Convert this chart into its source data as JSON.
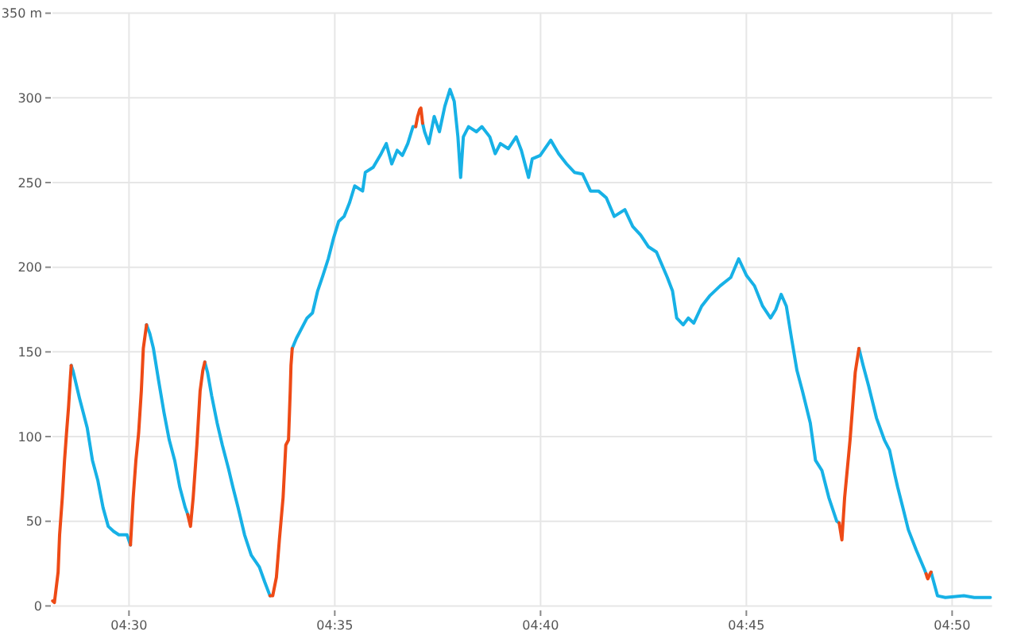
{
  "chart_data": {
    "type": "line",
    "xlim": [
      4.469,
      4.8495
    ],
    "xticks": [
      {
        "value": 4.5,
        "label": "04:30"
      },
      {
        "value": 4.583333,
        "label": "04:35"
      },
      {
        "value": 4.666667,
        "label": "04:40"
      },
      {
        "value": 4.75,
        "label": "04:45"
      },
      {
        "value": 4.833333,
        "label": "04:50"
      }
    ],
    "ylim": [
      0,
      350
    ],
    "yticks": [
      0,
      50,
      100,
      150,
      200,
      250,
      300,
      {
        "value": 350,
        "label": "350 m"
      }
    ],
    "grid": true,
    "series": [
      {
        "color": "#17b1e6",
        "x": [
          4.4766,
          4.4773,
          4.4799,
          4.4831,
          4.4852,
          4.4874,
          4.4895,
          4.4916,
          4.4938,
          4.4959,
          4.4992,
          4.5006,
          4.5039,
          4.5071,
          4.5084,
          4.5099,
          4.512,
          4.5142,
          4.5163,
          4.5185,
          4.5206,
          4.5228,
          4.5238,
          4.5275,
          4.5307,
          4.5318,
          4.5335,
          4.5357,
          4.5378,
          4.5403,
          4.5421,
          4.5442,
          4.5468,
          4.5495,
          4.5528,
          4.555,
          4.5571,
          4.5624,
          4.5661,
          4.5678,
          4.5721,
          4.5743,
          4.5764,
          4.5785,
          4.5807,
          4.5828,
          4.5849,
          4.5871,
          4.5893,
          4.5914,
          4.5946,
          4.5957,
          4.5989,
          4.6021,
          4.6042,
          4.6064,
          4.6086,
          4.6107,
          4.6129,
          4.615,
          4.6161,
          4.6169,
          4.6189,
          4.6197,
          4.6214,
          4.6236,
          4.6257,
          4.6279,
          4.63,
          4.6317,
          4.6332,
          4.6343,
          4.6354,
          4.6375,
          4.6407,
          4.6429,
          4.6461,
          4.6483,
          4.6504,
          4.6536,
          4.6568,
          4.6589,
          4.6618,
          4.6633,
          4.6665,
          4.6708,
          4.674,
          4.6772,
          4.6804,
          4.6837,
          4.6869,
          4.6901,
          4.6933,
          4.6965,
          4.7008,
          4.704,
          4.7072,
          4.7104,
          4.7136,
          4.718,
          4.7201,
          4.7218,
          4.7244,
          4.7265,
          4.7287,
          4.7319,
          4.7351,
          4.7394,
          4.7437,
          4.7469,
          4.7501,
          4.7533,
          4.7566,
          4.7598,
          4.7619,
          4.7641,
          4.7662,
          4.7683,
          4.7705,
          4.7727,
          4.7759,
          4.778,
          4.7806,
          4.7834,
          4.7866,
          4.7876,
          4.792,
          4.7956,
          4.7973,
          4.7995,
          4.8027,
          4.8059,
          4.808,
          4.8102,
          4.8113,
          4.8134,
          4.8156,
          4.8188,
          4.822,
          4.8228,
          4.8235,
          4.8248,
          4.8274,
          4.8306,
          4.8381,
          4.8423,
          4.8488
        ],
        "values": [
          142,
          139,
          123,
          105,
          86,
          74,
          58,
          47,
          44,
          42,
          42,
          36,
          null,
          166,
          161,
          152,
          133,
          114,
          98,
          86,
          70,
          58,
          54,
          null,
          144,
          138,
          124,
          108,
          95,
          81,
          70,
          58,
          42,
          30,
          23,
          14,
          6,
          null,
          152,
          158,
          170,
          173,
          186,
          195,
          205,
          217,
          227,
          230,
          238,
          248,
          245,
          256,
          259,
          267,
          273,
          261,
          269,
          266,
          273,
          283,
          283,
          null,
          285,
          280,
          273,
          289,
          280,
          295,
          305,
          298,
          277,
          253,
          277,
          283,
          280,
          283,
          277,
          267,
          273,
          270,
          277,
          269,
          253,
          264,
          266,
          275,
          267,
          261,
          256,
          255,
          245,
          245,
          241,
          230,
          234,
          224,
          219,
          212,
          209,
          194,
          186,
          170,
          166,
          170,
          167,
          177,
          183,
          189,
          194,
          205,
          195,
          189,
          177,
          170,
          175,
          184,
          177,
          158,
          139,
          127,
          108,
          86,
          80,
          64,
          50,
          49,
          null,
          152,
          142,
          130,
          111,
          98,
          92,
          77,
          70,
          58,
          45,
          33,
          22,
          19,
          null,
          20,
          6,
          5,
          6,
          5,
          5
        ]
      },
      {
        "color": "#ee4a16",
        "x": [
          4.4691,
          4.4698,
          4.4713,
          4.4719,
          4.473,
          4.4739,
          4.4747,
          4.4755,
          4.4762,
          4.4766,
          4.4852,
          4.5006,
          4.5017,
          4.5028,
          4.5039,
          4.505,
          4.5058,
          4.5071,
          4.5163,
          4.5238,
          4.5249,
          4.526,
          4.5275,
          4.5288,
          4.5299,
          4.5307,
          4.5442,
          4.5571,
          4.5582,
          4.5597,
          4.5609,
          4.5624,
          4.5635,
          4.5646,
          4.5653,
          4.5656,
          4.5661,
          4.59,
          4.6161,
          4.6165,
          4.6169,
          4.6173,
          4.6177,
          4.6182,
          4.6186,
          4.6189,
          4.7,
          4.7876,
          4.7887,
          4.7898,
          4.792,
          4.7941,
          4.7956,
          4.81,
          4.8228,
          4.823,
          4.8232,
          4.8235,
          4.8238,
          4.8241,
          4.8244,
          4.8248
        ],
        "values": [
          3,
          2,
          20,
          42,
          64,
          86,
          102,
          117,
          133,
          142,
          null,
          36,
          64,
          86,
          102,
          127,
          152,
          166,
          null,
          54,
          47,
          64,
          95,
          127,
          139,
          144,
          null,
          6,
          6,
          17,
          39,
          64,
          95,
          98,
          127,
          142,
          152,
          null,
          283,
          286,
          289,
          291,
          293,
          294,
          289,
          285,
          null,
          49,
          39,
          64,
          98,
          138,
          152,
          null,
          19,
          18,
          17,
          16,
          17,
          18,
          19,
          20
        ]
      }
    ]
  }
}
